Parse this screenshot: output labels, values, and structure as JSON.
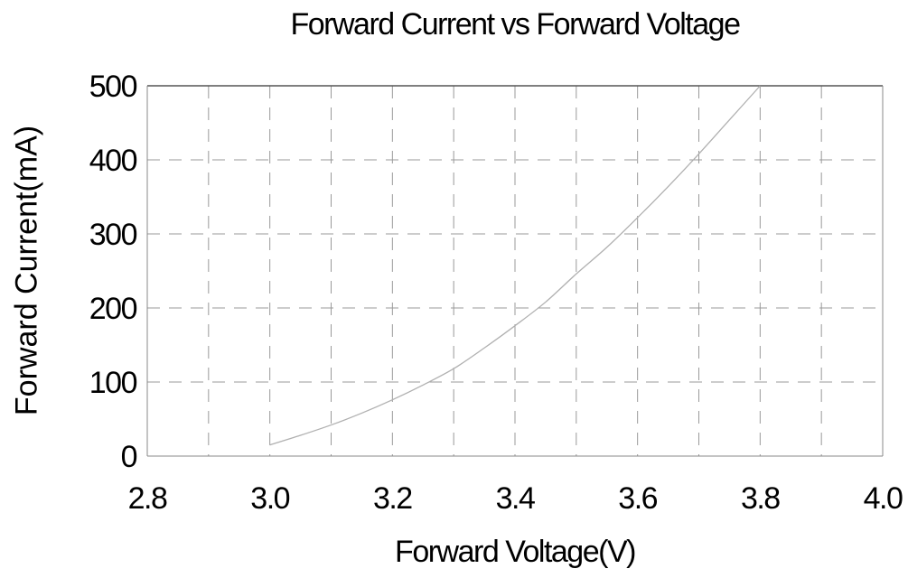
{
  "chart_data": {
    "type": "line",
    "title": "Forward Current vs Forward Voltage",
    "xlabel": "Forward Voltage(V)",
    "ylabel": "Forward Current(mA)",
    "xlim": [
      2.8,
      4.0
    ],
    "ylim": [
      0,
      500
    ],
    "x_ticks": [
      "2.8",
      "3.0",
      "3.2",
      "3.4",
      "3.6",
      "3.8",
      "4.0"
    ],
    "y_ticks": [
      "0",
      "100",
      "200",
      "300",
      "400",
      "500"
    ],
    "grid": true,
    "grid_style": "dashed",
    "line_color": "#b0b0b0",
    "grid_color": "#999999",
    "series": [
      {
        "x": [
          3.0,
          3.05,
          3.1,
          3.15,
          3.2,
          3.25,
          3.3,
          3.35,
          3.4,
          3.45,
          3.5,
          3.55,
          3.6,
          3.65,
          3.7,
          3.75,
          3.8
        ],
        "values": [
          15,
          28,
          42,
          58,
          76,
          96,
          118,
          146,
          176,
          208,
          246,
          282,
          322,
          364,
          408,
          454,
          500
        ]
      }
    ]
  }
}
